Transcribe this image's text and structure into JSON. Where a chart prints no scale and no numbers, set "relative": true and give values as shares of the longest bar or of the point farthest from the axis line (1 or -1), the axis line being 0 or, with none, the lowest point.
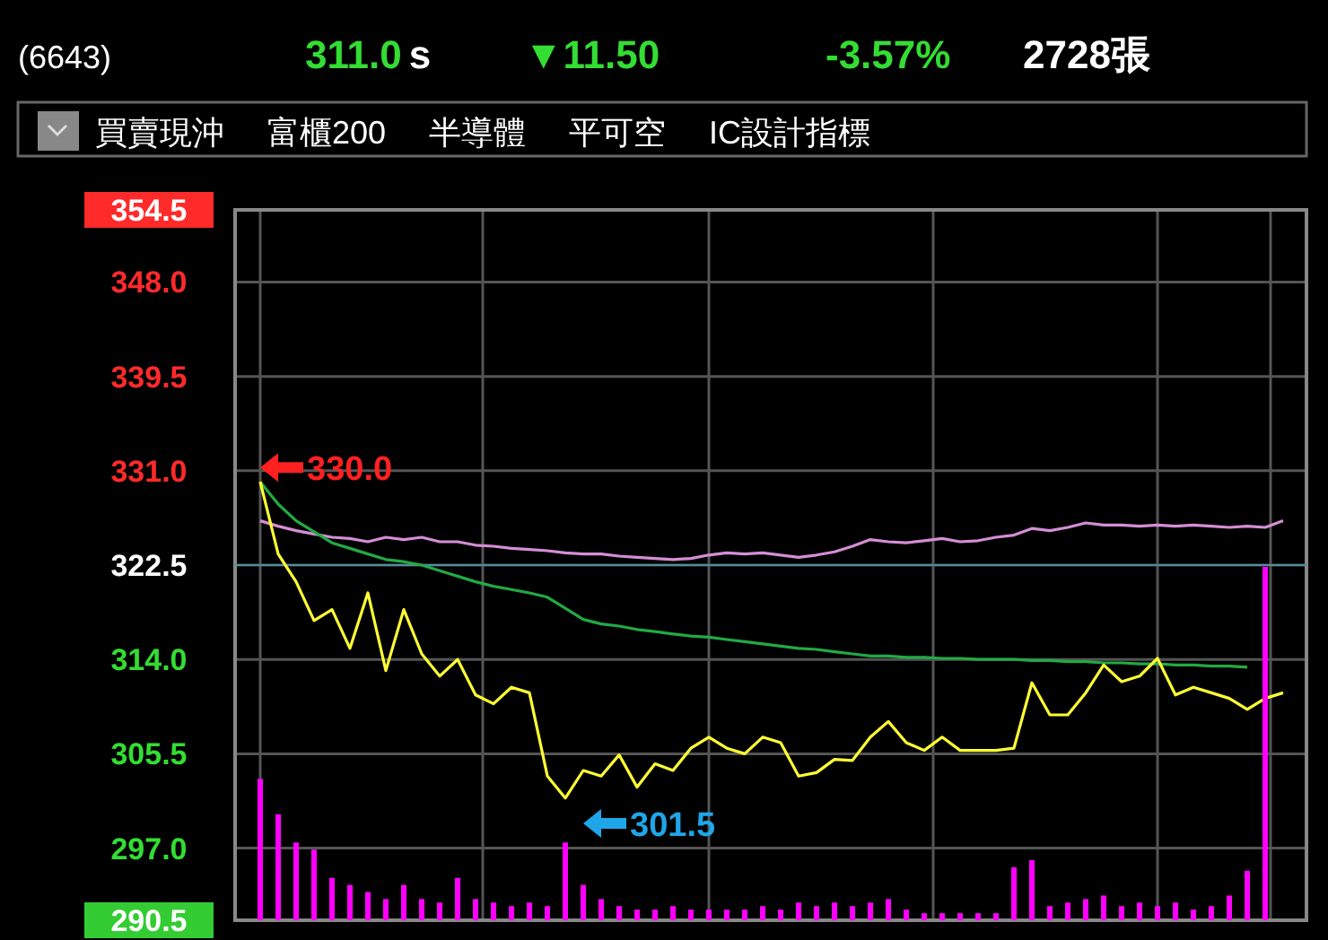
{
  "chart_data": [
    {
      "type": "line",
      "categories": [
        null,
        null,
        null,
        null,
        null,
        null,
        null,
        null,
        null,
        null,
        null,
        null,
        null,
        null,
        null,
        null,
        null,
        null,
        null,
        null,
        null,
        null,
        null,
        null,
        null,
        null,
        null,
        null,
        null,
        null,
        null,
        null,
        null,
        null,
        null,
        null,
        null,
        null,
        null,
        null,
        null,
        null,
        null,
        null,
        null,
        null,
        null,
        null,
        null,
        null,
        null,
        null,
        null,
        null,
        null,
        null,
        null,
        null
      ],
      "series": [
        {
          "color": "#d58ed5",
          "values": [
            326.5,
            326.0,
            325.6,
            325.3,
            325.0,
            324.9,
            324.6,
            325.0,
            324.8,
            325.0,
            324.6,
            324.6,
            324.3,
            324.2,
            324.0,
            323.9,
            323.8,
            323.6,
            323.5,
            323.5,
            323.3,
            323.2,
            323.1,
            323.0,
            323.1,
            323.4,
            323.6,
            323.5,
            323.6,
            323.4,
            323.2,
            323.4,
            323.7,
            324.2,
            324.8,
            324.6,
            324.5,
            324.7,
            324.9,
            324.6,
            324.7,
            325.0,
            325.2,
            325.8,
            325.6,
            325.9,
            326.3,
            326.1,
            326.1,
            326.0,
            326.1,
            326.0,
            326.1,
            326.0,
            325.9,
            326.0,
            325.9,
            326.5
          ]
        },
        {
          "color": "#22aa44",
          "values": [
            330.0,
            328.0,
            326.5,
            325.5,
            324.5,
            324.0,
            323.5,
            323.0,
            322.8,
            322.5,
            322.0,
            321.5,
            321.0,
            320.6,
            320.3,
            320.0,
            319.6,
            318.6,
            317.6,
            317.2,
            317.0,
            316.7,
            316.5,
            316.3,
            316.1,
            316.0,
            315.8,
            315.6,
            315.4,
            315.2,
            315.0,
            314.9,
            314.7,
            314.5,
            314.3,
            314.3,
            314.2,
            314.2,
            314.1,
            314.1,
            314.0,
            314.0,
            314.0,
            313.9,
            313.9,
            313.8,
            313.8,
            313.7,
            313.7,
            313.6,
            313.6,
            313.5,
            313.5,
            313.4,
            313.4,
            313.3,
            null,
            null
          ]
        },
        {
          "color": "#ffff33",
          "values": [
            330.0,
            323.5,
            321.0,
            317.5,
            318.5,
            315.0,
            320.0,
            313.0,
            318.5,
            314.5,
            312.5,
            314.0,
            310.8,
            310.0,
            311.5,
            311.0,
            303.5,
            301.5,
            304.0,
            303.5,
            305.4,
            302.5,
            304.6,
            304.0,
            306.0,
            307.0,
            306.0,
            305.5,
            307.0,
            306.5,
            303.5,
            303.8,
            305.0,
            304.9,
            307.0,
            308.4,
            306.5,
            305.8,
            307.0,
            305.8,
            305.8,
            305.8,
            306.0,
            311.9,
            309.0,
            309.0,
            311.0,
            313.5,
            312.0,
            312.5,
            314.1,
            310.8,
            311.5,
            311.0,
            310.5,
            309.5,
            310.5,
            311.0
          ]
        }
      ],
      "ylim": [
        290.5,
        354.5
      ],
      "yticks": [
        290.5,
        {
          "value": 297,
          "label": "297.0"
        },
        305.5,
        {
          "value": 314,
          "label": "314.0"
        },
        322.5,
        {
          "value": 331,
          "label": "331.0"
        },
        339.5,
        {
          "value": 348,
          "label": "348.0"
        },
        354.5
      ],
      "grid": true,
      "tick_labels": "y",
      "ref_lines": [
        {
          "axis": "y",
          "value": 322.5,
          "color": "#4f8f9f"
        }
      ],
      "annotations": [
        "330.0",
        "301.5",
        "(6643)",
        "311.0",
        "s",
        "▼11.50",
        "-3.57%",
        "2728張",
        "買賣現沖",
        "富櫃200",
        "半導體",
        "平可空",
        "IC設計指標"
      ]
    },
    {
      "type": "bar",
      "relative": true,
      "color": "#ff00ff",
      "categories": [
        null,
        null,
        null,
        null,
        null,
        null,
        null,
        null,
        null,
        null,
        null,
        null,
        null,
        null,
        null,
        null,
        null,
        null,
        null,
        null,
        null,
        null,
        null,
        null,
        null,
        null,
        null,
        null,
        null,
        null,
        null,
        null,
        null,
        null,
        null,
        null,
        null,
        null,
        null,
        null,
        null,
        null,
        null,
        null,
        null,
        null,
        null,
        null,
        null,
        null,
        null,
        null,
        null,
        null,
        null,
        null,
        null,
        null
      ],
      "values": [
        0.4,
        0.3,
        0.22,
        0.2,
        0.12,
        0.1,
        0.08,
        0.06,
        0.1,
        0.06,
        0.05,
        0.12,
        0.06,
        0.05,
        0.04,
        0.05,
        0.04,
        0.22,
        0.1,
        0.06,
        0.04,
        0.03,
        0.03,
        0.04,
        0.03,
        0.03,
        0.03,
        0.03,
        0.04,
        0.03,
        0.05,
        0.04,
        0.05,
        0.04,
        0.05,
        0.06,
        0.03,
        0.02,
        0.02,
        0.02,
        0.02,
        0.02,
        0.15,
        0.17,
        0.04,
        0.05,
        0.06,
        0.07,
        0.04,
        0.05,
        0.04,
        0.05,
        0.03,
        0.04,
        0.07,
        0.14,
        1.0,
        null
      ]
    }
  ]
}
